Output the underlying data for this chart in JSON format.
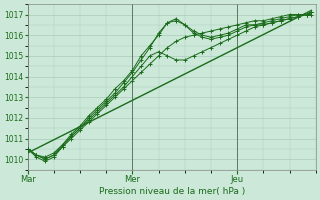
{
  "xlabel": "Pression niveau de la mer( hPa )",
  "ylim": [
    1009.5,
    1017.5
  ],
  "xlim": [
    0,
    66
  ],
  "yticks": [
    1010,
    1011,
    1012,
    1013,
    1014,
    1015,
    1016,
    1017
  ],
  "xtick_labels": [
    "Mar",
    "Mer",
    "Jeu"
  ],
  "xtick_positions": [
    0,
    24,
    48
  ],
  "vline_positions": [
    0,
    24,
    48
  ],
  "bg_color": "#cce8d8",
  "grid_color": "#aaccbb",
  "line_color": "#1a6b1a",
  "series_with_markers": [
    [
      0,
      1010.5,
      2,
      1010.2,
      4,
      1010.1,
      6,
      1010.3,
      8,
      1010.7,
      10,
      1011.1,
      12,
      1011.5,
      14,
      1011.9,
      16,
      1012.3,
      18,
      1012.7,
      20,
      1013.1,
      22,
      1013.5,
      24,
      1014.0,
      26,
      1014.5,
      28,
      1015.0,
      30,
      1015.2,
      32,
      1015.0,
      34,
      1014.8,
      36,
      1014.8,
      38,
      1015.0,
      40,
      1015.2,
      42,
      1015.4,
      44,
      1015.6,
      46,
      1015.8,
      48,
      1016.0,
      50,
      1016.2,
      52,
      1016.4,
      54,
      1016.5,
      56,
      1016.6,
      58,
      1016.7,
      60,
      1016.8,
      62,
      1016.9,
      64,
      1017.0,
      65,
      1017.0
    ],
    [
      0,
      1010.5,
      2,
      1010.2,
      4,
      1010.0,
      6,
      1010.2,
      8,
      1010.7,
      10,
      1011.2,
      12,
      1011.6,
      14,
      1012.1,
      16,
      1012.5,
      18,
      1012.9,
      20,
      1013.4,
      22,
      1013.8,
      24,
      1014.3,
      26,
      1015.0,
      28,
      1015.5,
      30,
      1016.0,
      32,
      1016.6,
      34,
      1016.8,
      36,
      1016.5,
      38,
      1016.1,
      40,
      1015.9,
      42,
      1015.8,
      44,
      1015.9,
      46,
      1016.0,
      48,
      1016.2,
      50,
      1016.4,
      52,
      1016.5,
      54,
      1016.5,
      56,
      1016.6,
      58,
      1016.7,
      60,
      1016.8,
      62,
      1016.9,
      64,
      1017.0,
      65,
      1017.1
    ],
    [
      0,
      1010.5,
      2,
      1010.1,
      4,
      1009.9,
      6,
      1010.1,
      8,
      1010.6,
      10,
      1011.1,
      12,
      1011.5,
      14,
      1012.0,
      16,
      1012.4,
      18,
      1012.8,
      20,
      1013.2,
      22,
      1013.7,
      24,
      1014.2,
      26,
      1014.8,
      28,
      1015.4,
      30,
      1016.1,
      32,
      1016.6,
      34,
      1016.7,
      36,
      1016.5,
      38,
      1016.2,
      40,
      1016.0,
      42,
      1015.9,
      44,
      1016.0,
      46,
      1016.1,
      48,
      1016.3,
      50,
      1016.5,
      52,
      1016.5,
      54,
      1016.6,
      56,
      1016.7,
      58,
      1016.8,
      60,
      1016.9,
      62,
      1017.0,
      64,
      1017.0,
      65,
      1017.1
    ],
    [
      0,
      1010.5,
      2,
      1010.2,
      4,
      1010.0,
      6,
      1010.2,
      8,
      1010.6,
      10,
      1011.0,
      12,
      1011.4,
      14,
      1011.8,
      16,
      1012.2,
      18,
      1012.6,
      20,
      1013.0,
      22,
      1013.4,
      24,
      1013.8,
      26,
      1014.2,
      28,
      1014.6,
      30,
      1015.0,
      32,
      1015.4,
      34,
      1015.7,
      36,
      1015.9,
      38,
      1016.0,
      40,
      1016.1,
      42,
      1016.2,
      44,
      1016.3,
      46,
      1016.4,
      48,
      1016.5,
      50,
      1016.6,
      52,
      1016.7,
      54,
      1016.7,
      56,
      1016.8,
      58,
      1016.9,
      60,
      1017.0,
      62,
      1017.0,
      64,
      1017.0,
      65,
      1017.1
    ]
  ],
  "series_straight": [
    [
      0,
      1010.3,
      65,
      1017.2
    ]
  ]
}
